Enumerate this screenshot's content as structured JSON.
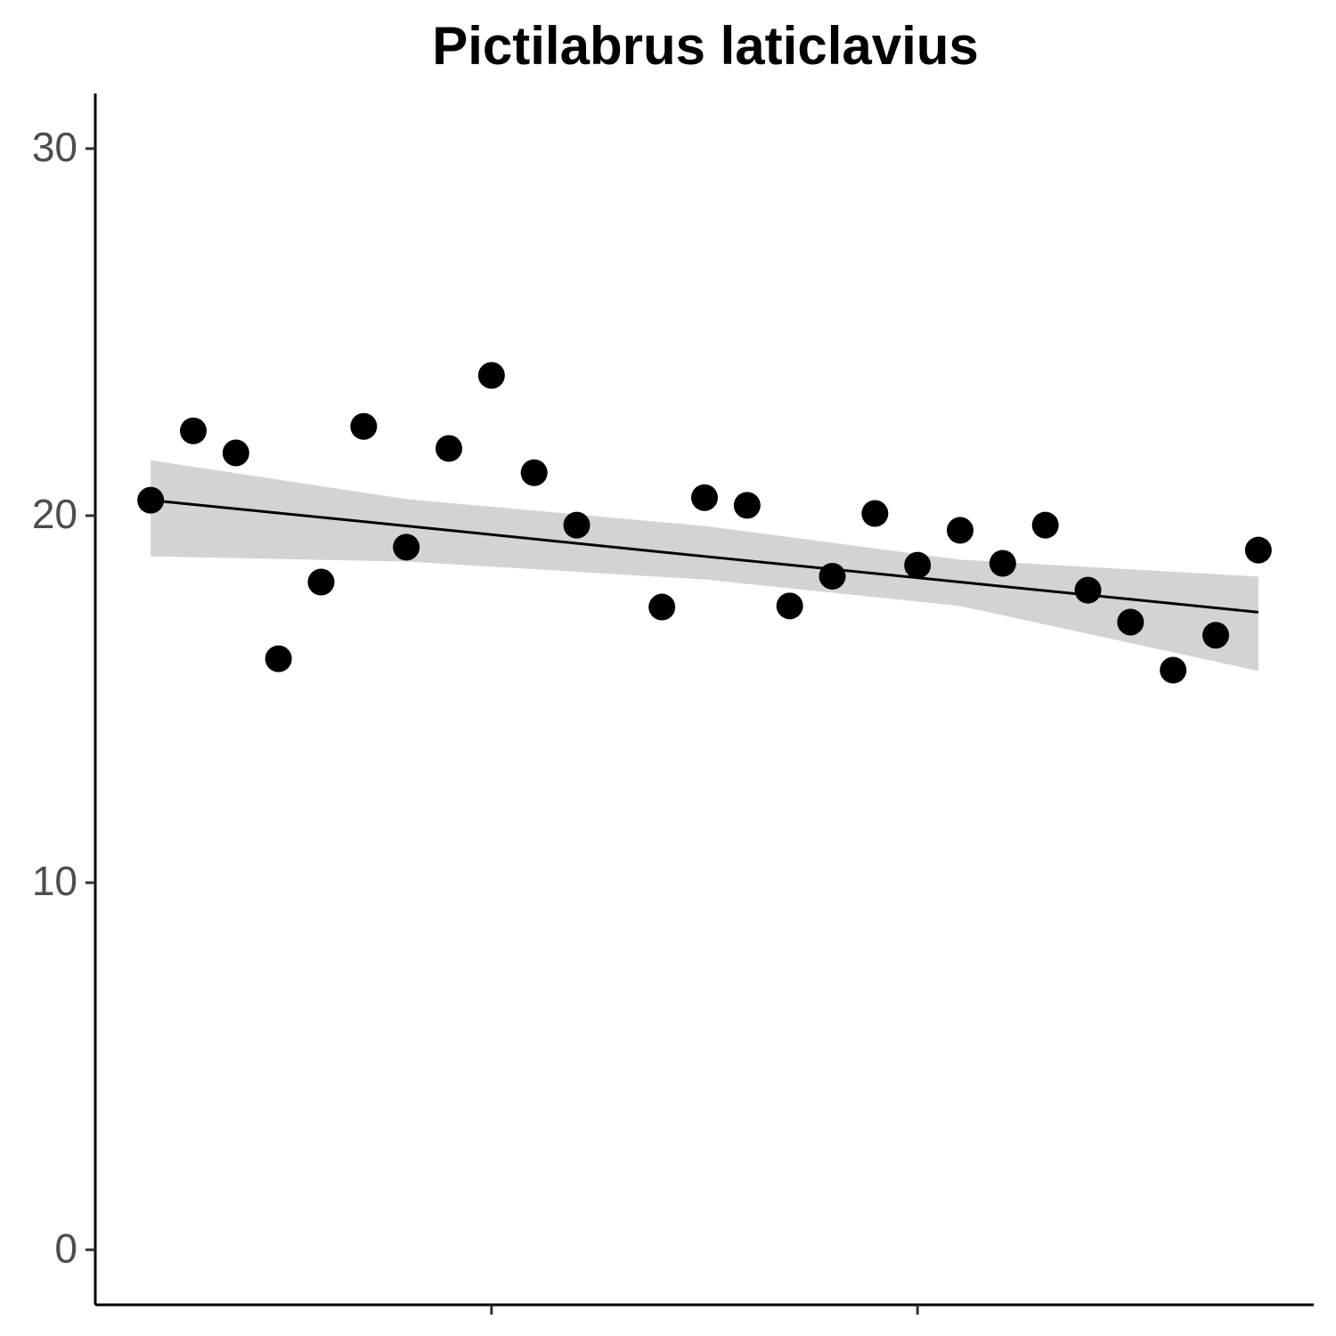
{
  "chart_data": {
    "type": "scatter",
    "title": "Pictilabrus laticlavius",
    "x": [
      0,
      1,
      2,
      3,
      4,
      5,
      6,
      7,
      8,
      9,
      10,
      12,
      13,
      14,
      15,
      16,
      17,
      18,
      19,
      20,
      21,
      22,
      23,
      24,
      25,
      26
    ],
    "values": [
      20.42,
      22.31,
      21.71,
      16.1,
      18.19,
      22.43,
      19.14,
      21.83,
      23.82,
      21.17,
      19.74,
      17.51,
      20.49,
      20.28,
      17.54,
      18.35,
      20.06,
      18.65,
      19.6,
      18.7,
      19.74,
      17.97,
      17.1,
      15.79,
      16.74,
      19.06
    ],
    "color": "#000000",
    "fit": {
      "x": [
        0,
        6,
        13,
        19,
        26
      ],
      "values": [
        20.42,
        19.72,
        18.89,
        18.19,
        17.37
      ],
      "lower": [
        18.89,
        18.75,
        18.26,
        17.54,
        15.77
      ],
      "upper": [
        21.51,
        20.45,
        19.72,
        18.8,
        18.34
      ],
      "color": "#000000",
      "band_color": "#d3d3d3"
    },
    "xlim": [
      -1.3,
      27.3
    ],
    "xticks": [
      8,
      18
    ],
    "ylim": [
      -1.5,
      31.5
    ],
    "yticks": [
      0,
      10,
      20,
      30
    ],
    "grid": false
  }
}
